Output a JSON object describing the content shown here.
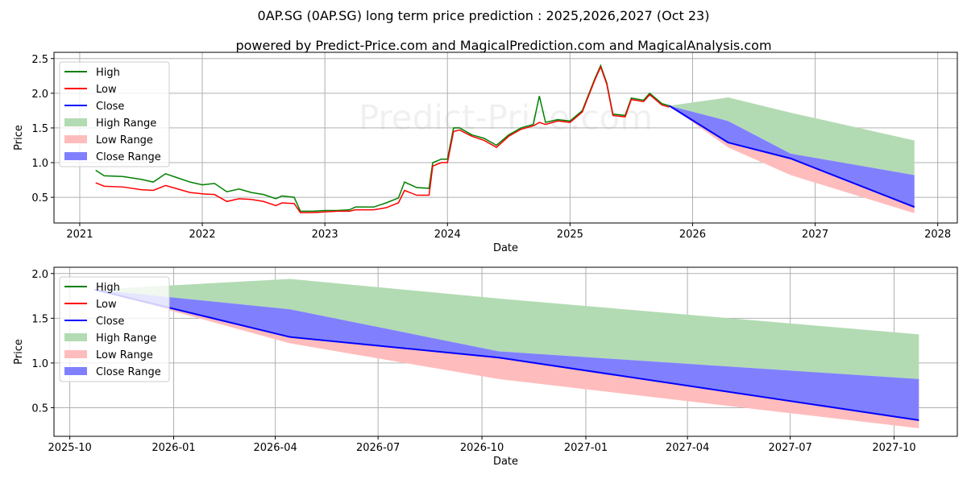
{
  "title": "0AP.SG (0AP.SG) long term price prediction : 2025,2026,2027 (Oct 23)",
  "subtitle": "powered by Predict-Price.com and MagicalPrediction.com and MagicalAnalysis.com",
  "watermark": "Predict-Price.com",
  "colors": {
    "high": "#008000",
    "low": "#ff0000",
    "close": "#0000ff",
    "high_range": "#b3dbb3",
    "low_range": "#ffbcbc",
    "close_range": "#8080ff"
  },
  "legend": [
    "High",
    "Low",
    "Close",
    "High Range",
    "Low Range",
    "Close Range"
  ],
  "chart_data": [
    {
      "type": "line",
      "name": "long-term",
      "xlabel": "Date",
      "ylabel": "Price",
      "xlim": [
        2020.79,
        2028.16
      ],
      "ylim": [
        0.13,
        2.59
      ],
      "grid": true,
      "legend_position": "top-left",
      "xticks": [
        {
          "v": 2021,
          "label": "2021"
        },
        {
          "v": 2022,
          "label": "2022"
        },
        {
          "v": 2023,
          "label": "2023"
        },
        {
          "v": 2024,
          "label": "2024"
        },
        {
          "v": 2025,
          "label": "2025"
        },
        {
          "v": 2026,
          "label": "2026"
        },
        {
          "v": 2027,
          "label": "2027"
        },
        {
          "v": 2028,
          "label": "2028"
        }
      ],
      "yticks": [
        {
          "v": 0.5,
          "label": "0.5"
        },
        {
          "v": 1.0,
          "label": "1.0"
        },
        {
          "v": 1.5,
          "label": "1.5"
        },
        {
          "v": 2.0,
          "label": "2.0"
        },
        {
          "v": 2.5,
          "label": "2.5"
        }
      ],
      "history": {
        "x": [
          2021.13,
          2021.2,
          2021.35,
          2021.5,
          2021.6,
          2021.7,
          2021.8,
          2021.9,
          2022.0,
          2022.1,
          2022.2,
          2022.3,
          2022.4,
          2022.5,
          2022.6,
          2022.65,
          2022.75,
          2022.8,
          2022.9,
          2023.0,
          2023.1,
          2023.2,
          2023.25,
          2023.4,
          2023.5,
          2023.6,
          2023.65,
          2023.75,
          2023.85,
          2023.88,
          2023.95,
          2024.0,
          2024.05,
          2024.1,
          2024.2,
          2024.3,
          2024.4,
          2024.5,
          2024.6,
          2024.7,
          2024.75,
          2024.8,
          2024.9,
          2025.0,
          2025.1,
          2025.2,
          2025.25,
          2025.3,
          2025.35,
          2025.45,
          2025.5,
          2025.6,
          2025.65,
          2025.75,
          2025.81
        ],
        "high": [
          0.89,
          0.81,
          0.8,
          0.76,
          0.72,
          0.84,
          0.78,
          0.72,
          0.68,
          0.7,
          0.58,
          0.62,
          0.57,
          0.54,
          0.48,
          0.52,
          0.5,
          0.3,
          0.3,
          0.31,
          0.31,
          0.32,
          0.36,
          0.36,
          0.42,
          0.49,
          0.72,
          0.64,
          0.63,
          1.0,
          1.05,
          1.05,
          1.5,
          1.5,
          1.4,
          1.35,
          1.25,
          1.4,
          1.5,
          1.55,
          1.96,
          1.58,
          1.62,
          1.6,
          1.75,
          2.2,
          2.4,
          2.15,
          1.7,
          1.68,
          1.93,
          1.9,
          2.0,
          1.85,
          1.82
        ],
        "low": [
          0.71,
          0.66,
          0.65,
          0.61,
          0.6,
          0.67,
          0.62,
          0.57,
          0.55,
          0.54,
          0.44,
          0.48,
          0.47,
          0.44,
          0.38,
          0.42,
          0.41,
          0.28,
          0.28,
          0.29,
          0.3,
          0.3,
          0.32,
          0.32,
          0.35,
          0.42,
          0.6,
          0.53,
          0.53,
          0.95,
          1.0,
          1.0,
          1.45,
          1.47,
          1.38,
          1.32,
          1.22,
          1.38,
          1.48,
          1.53,
          1.58,
          1.55,
          1.6,
          1.58,
          1.73,
          2.18,
          2.38,
          2.13,
          1.68,
          1.66,
          1.91,
          1.88,
          1.98,
          1.83,
          1.8
        ]
      },
      "forecast": {
        "x": [
          2025.81,
          2026.29,
          2026.8,
          2027.81
        ],
        "close": [
          1.82,
          1.29,
          1.06,
          0.36
        ],
        "high_range": [
          1.82,
          1.94,
          1.72,
          1.32
        ],
        "close_range_upper": [
          1.82,
          1.6,
          1.13,
          0.82
        ],
        "low_range_lower": [
          1.82,
          1.22,
          0.82,
          0.27
        ]
      }
    },
    {
      "type": "line",
      "name": "forecast-detail",
      "xlabel": "Date",
      "ylabel": "Price",
      "x_unit": "days since 2025-10-01",
      "xlim": [
        -14,
        786
      ],
      "ylim": [
        0.18,
        2.07
      ],
      "grid": true,
      "legend_position": "top-left",
      "xticks": [
        {
          "v": 0,
          "label": "2025-10"
        },
        {
          "v": 92,
          "label": "2026-01"
        },
        {
          "v": 182,
          "label": "2026-04"
        },
        {
          "v": 273,
          "label": "2026-07"
        },
        {
          "v": 365,
          "label": "2026-10"
        },
        {
          "v": 457,
          "label": "2027-01"
        },
        {
          "v": 547,
          "label": "2027-04"
        },
        {
          "v": 638,
          "label": "2027-07"
        },
        {
          "v": 730,
          "label": "2027-10"
        }
      ],
      "yticks": [
        {
          "v": 0.5,
          "label": "0.5"
        },
        {
          "v": 1.0,
          "label": "1.0"
        },
        {
          "v": 1.5,
          "label": "1.5"
        },
        {
          "v": 2.0,
          "label": "2.0"
        }
      ],
      "forecast": {
        "x": [
          22,
          195,
          380,
          752
        ],
        "close": [
          1.82,
          1.29,
          1.06,
          0.36
        ],
        "high_range": [
          1.82,
          1.94,
          1.72,
          1.32
        ],
        "close_range_upper": [
          1.82,
          1.6,
          1.13,
          0.82
        ],
        "low_range_lower": [
          1.82,
          1.22,
          0.82,
          0.27
        ]
      }
    }
  ]
}
